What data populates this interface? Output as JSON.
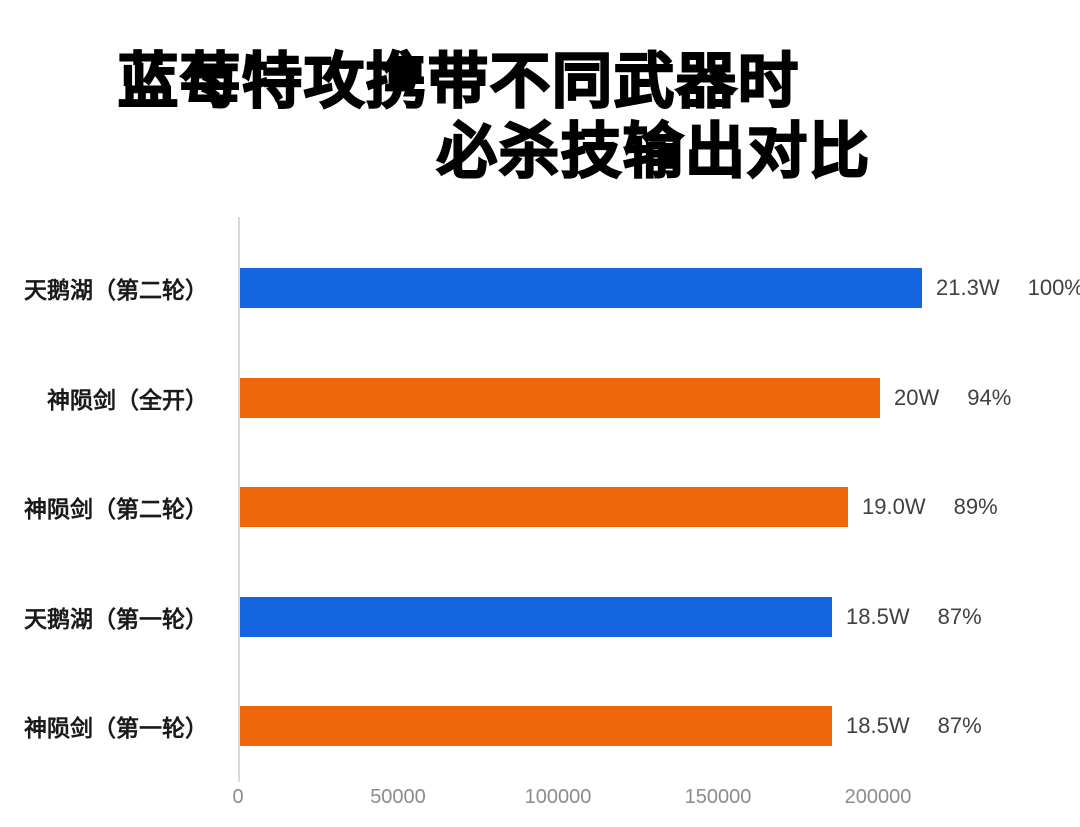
{
  "title": {
    "line1": "蓝莓特攻携带不同武器时",
    "line2": "必杀技输出对比"
  },
  "chart_data": {
    "type": "bar",
    "orientation": "horizontal",
    "title": "蓝莓特攻携带不同武器时 必杀技输出对比",
    "categories": [
      "天鹅湖（第二轮）",
      "神陨剑（全开）",
      "神陨剑（第二轮）",
      "天鹅湖（第一轮）",
      "神陨剑（第一轮）"
    ],
    "values": [
      213000,
      200000,
      190000,
      185000,
      185000
    ],
    "value_labels": [
      "21.3W",
      "20W",
      "19.0W",
      "18.5W",
      "18.5W"
    ],
    "percent_labels": [
      "100%",
      "94%",
      "89%",
      "87%",
      "87%"
    ],
    "bar_colors": [
      "#1565E0",
      "#EE670A",
      "#EE670A",
      "#1565E0",
      "#EE670A"
    ],
    "x_tick_values": [
      0,
      50000,
      100000,
      150000,
      200000
    ],
    "x_tick_labels": [
      "0",
      "50000",
      "100000",
      "150000",
      "200000"
    ],
    "xlim": [
      0,
      260000
    ],
    "grid": false,
    "legend": false
  },
  "colors": {
    "background": "#FFFFFF",
    "blue": "#1565E0",
    "orange": "#EE670A",
    "axis_line": "#D9D9D9",
    "tick_text": "#8C8C8C",
    "value_text": "#404040",
    "category_text": "#1A1A1A",
    "title_text": "#000000"
  }
}
